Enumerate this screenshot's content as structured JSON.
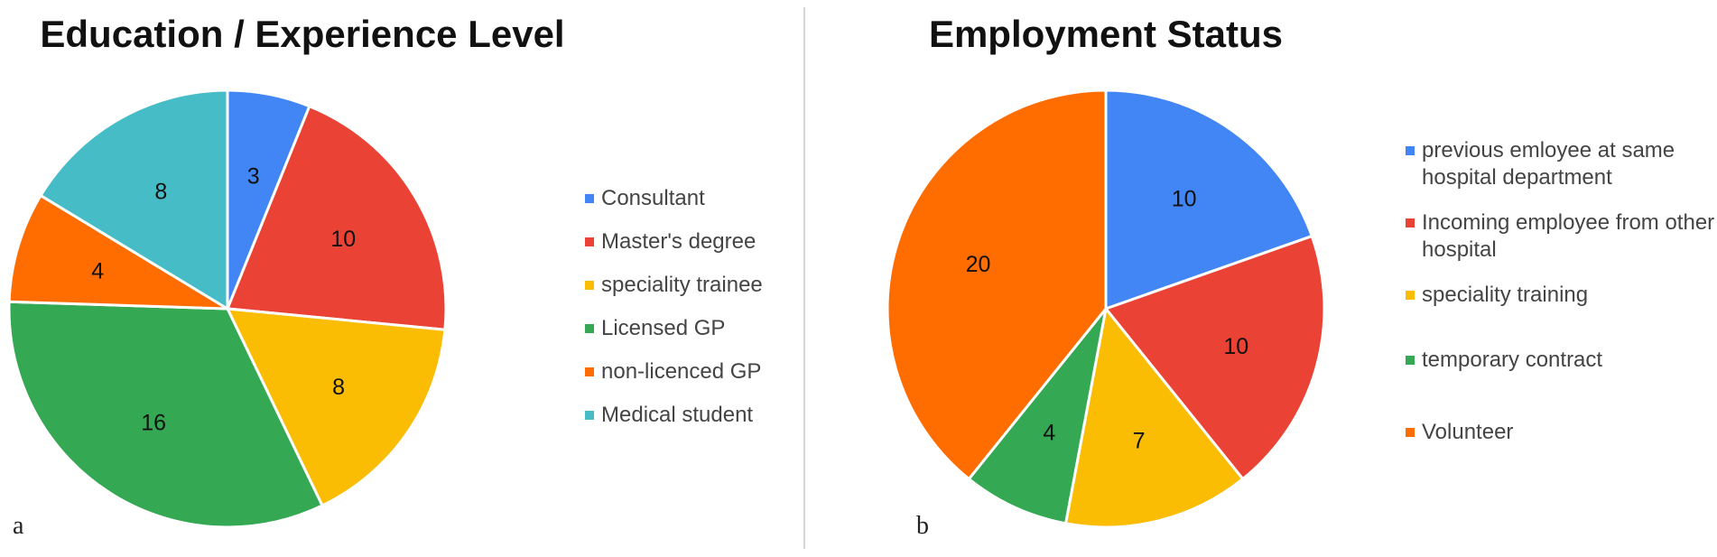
{
  "chart_data": [
    {
      "type": "pie",
      "title": "Education / Experience Level",
      "panel_label": "a",
      "legend_position": "right",
      "slices": [
        {
          "label": "Consultant",
          "value": 3,
          "color": "#4285f4"
        },
        {
          "label": "Master's degree",
          "value": 10,
          "color": "#ea4335"
        },
        {
          "label": "speciality trainee",
          "value": 8,
          "color": "#fbbc04"
        },
        {
          "label": "Licensed GP",
          "value": 16,
          "color": "#34a853"
        },
        {
          "label": "non-licenced GP",
          "value": 4,
          "color": "#ff6d01"
        },
        {
          "label": "Medical student",
          "value": 8,
          "color": "#46bdc6"
        }
      ]
    },
    {
      "type": "pie",
      "title": "Employment Status",
      "panel_label": "b",
      "legend_position": "right",
      "slices": [
        {
          "label": "previous emloyee at same hospital department",
          "value": 10,
          "color": "#4285f4"
        },
        {
          "label": "Incoming employee from other hospital",
          "value": 10,
          "color": "#ea4335"
        },
        {
          "label": "speciality training",
          "value": 7,
          "color": "#fbbc04"
        },
        {
          "label": "temporary contract",
          "value": 4,
          "color": "#34a853"
        },
        {
          "label": "Volunteer",
          "value": 20,
          "color": "#ff6d01"
        }
      ]
    }
  ]
}
